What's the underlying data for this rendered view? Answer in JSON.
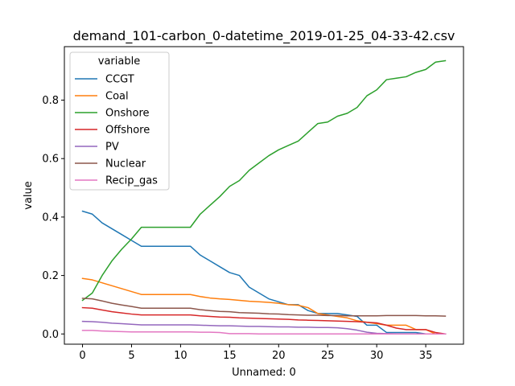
{
  "chart_data": {
    "type": "line",
    "title": "demand_101-carbon_0-datetime_2019-01-25_04-33-42.csv",
    "xlabel": "Unnamed: 0",
    "ylabel": "value",
    "xlim": [
      -1.85,
      38.85
    ],
    "ylim": [
      -0.035,
      0.983
    ],
    "xticks": [
      0,
      5,
      10,
      15,
      20,
      25,
      30,
      35
    ],
    "yticks": [
      0.0,
      0.2,
      0.4,
      0.6,
      0.8
    ],
    "ytick_labels": [
      "0.0",
      "0.2",
      "0.4",
      "0.6",
      "0.8"
    ],
    "grid": false,
    "legend": {
      "title": "variable",
      "placement": "top-left"
    },
    "x": [
      0,
      1,
      2,
      3,
      4,
      5,
      6,
      7,
      8,
      9,
      10,
      11,
      12,
      13,
      14,
      15,
      16,
      17,
      18,
      19,
      20,
      21,
      22,
      23,
      24,
      25,
      26,
      27,
      28,
      29,
      30,
      31,
      32,
      33,
      34,
      35,
      36,
      37
    ],
    "series": [
      {
        "name": "CCGT",
        "color": "#1f77b4",
        "values": [
          0.42,
          0.41,
          0.38,
          0.36,
          0.34,
          0.32,
          0.3,
          0.3,
          0.3,
          0.3,
          0.3,
          0.3,
          0.27,
          0.25,
          0.23,
          0.21,
          0.2,
          0.16,
          0.14,
          0.12,
          0.11,
          0.1,
          0.1,
          0.08,
          0.07,
          0.07,
          0.07,
          0.065,
          0.06,
          0.03,
          0.03,
          0.005,
          0.005,
          0.005,
          0.005,
          0.0,
          0.0,
          0.0
        ]
      },
      {
        "name": "Coal",
        "color": "#ff7f0e",
        "values": [
          0.19,
          0.185,
          0.175,
          0.165,
          0.155,
          0.145,
          0.135,
          0.135,
          0.135,
          0.135,
          0.135,
          0.135,
          0.128,
          0.123,
          0.12,
          0.118,
          0.115,
          0.112,
          0.11,
          0.108,
          0.105,
          0.1,
          0.098,
          0.09,
          0.07,
          0.065,
          0.06,
          0.055,
          0.045,
          0.04,
          0.035,
          0.03,
          0.03,
          0.03,
          0.015,
          0.015,
          0.0,
          0.0
        ]
      },
      {
        "name": "Onshore",
        "color": "#2ca02c",
        "values": [
          0.115,
          0.14,
          0.2,
          0.25,
          0.29,
          0.325,
          0.365,
          0.365,
          0.365,
          0.365,
          0.365,
          0.365,
          0.41,
          0.44,
          0.47,
          0.505,
          0.525,
          0.56,
          0.585,
          0.61,
          0.63,
          0.645,
          0.66,
          0.69,
          0.72,
          0.725,
          0.745,
          0.755,
          0.775,
          0.815,
          0.835,
          0.87,
          0.875,
          0.88,
          0.895,
          0.905,
          0.93,
          0.935
        ]
      },
      {
        "name": "Offshore",
        "color": "#d62728",
        "values": [
          0.09,
          0.088,
          0.082,
          0.076,
          0.072,
          0.068,
          0.065,
          0.065,
          0.065,
          0.065,
          0.065,
          0.065,
          0.062,
          0.06,
          0.058,
          0.057,
          0.055,
          0.054,
          0.053,
          0.052,
          0.051,
          0.05,
          0.048,
          0.047,
          0.046,
          0.045,
          0.044,
          0.043,
          0.042,
          0.04,
          0.038,
          0.03,
          0.02,
          0.015,
          0.015,
          0.015,
          0.005,
          0.0
        ]
      },
      {
        "name": "PV",
        "color": "#9467bd",
        "values": [
          0.043,
          0.042,
          0.04,
          0.037,
          0.035,
          0.033,
          0.031,
          0.031,
          0.031,
          0.031,
          0.031,
          0.031,
          0.03,
          0.029,
          0.028,
          0.028,
          0.027,
          0.026,
          0.026,
          0.025,
          0.024,
          0.024,
          0.023,
          0.023,
          0.022,
          0.022,
          0.021,
          0.018,
          0.013,
          0.006,
          0.002,
          0.001,
          0.0,
          0.0,
          0.0,
          0.0,
          0.0,
          0.0
        ]
      },
      {
        "name": "Nuclear",
        "color": "#8c564b",
        "values": [
          0.122,
          0.12,
          0.113,
          0.105,
          0.099,
          0.094,
          0.088,
          0.088,
          0.088,
          0.088,
          0.088,
          0.088,
          0.083,
          0.08,
          0.077,
          0.076,
          0.073,
          0.072,
          0.071,
          0.069,
          0.068,
          0.066,
          0.065,
          0.064,
          0.064,
          0.063,
          0.063,
          0.062,
          0.062,
          0.062,
          0.062,
          0.063,
          0.063,
          0.063,
          0.063,
          0.062,
          0.062,
          0.061
        ]
      },
      {
        "name": "Recip_gas",
        "color": "#e377c2",
        "values": [
          0.012,
          0.012,
          0.01,
          0.009,
          0.008,
          0.007,
          0.007,
          0.007,
          0.007,
          0.007,
          0.007,
          0.007,
          0.006,
          0.006,
          0.005,
          0.001,
          0.001,
          0.001,
          0.0,
          0.0,
          0.0,
          0.0,
          0.0,
          0.0,
          0.0,
          0.0,
          0.0,
          0.0,
          0.0,
          0.0,
          0.0,
          0.0,
          0.0,
          0.0,
          0.0,
          0.0,
          0.0,
          0.0
        ]
      }
    ]
  }
}
